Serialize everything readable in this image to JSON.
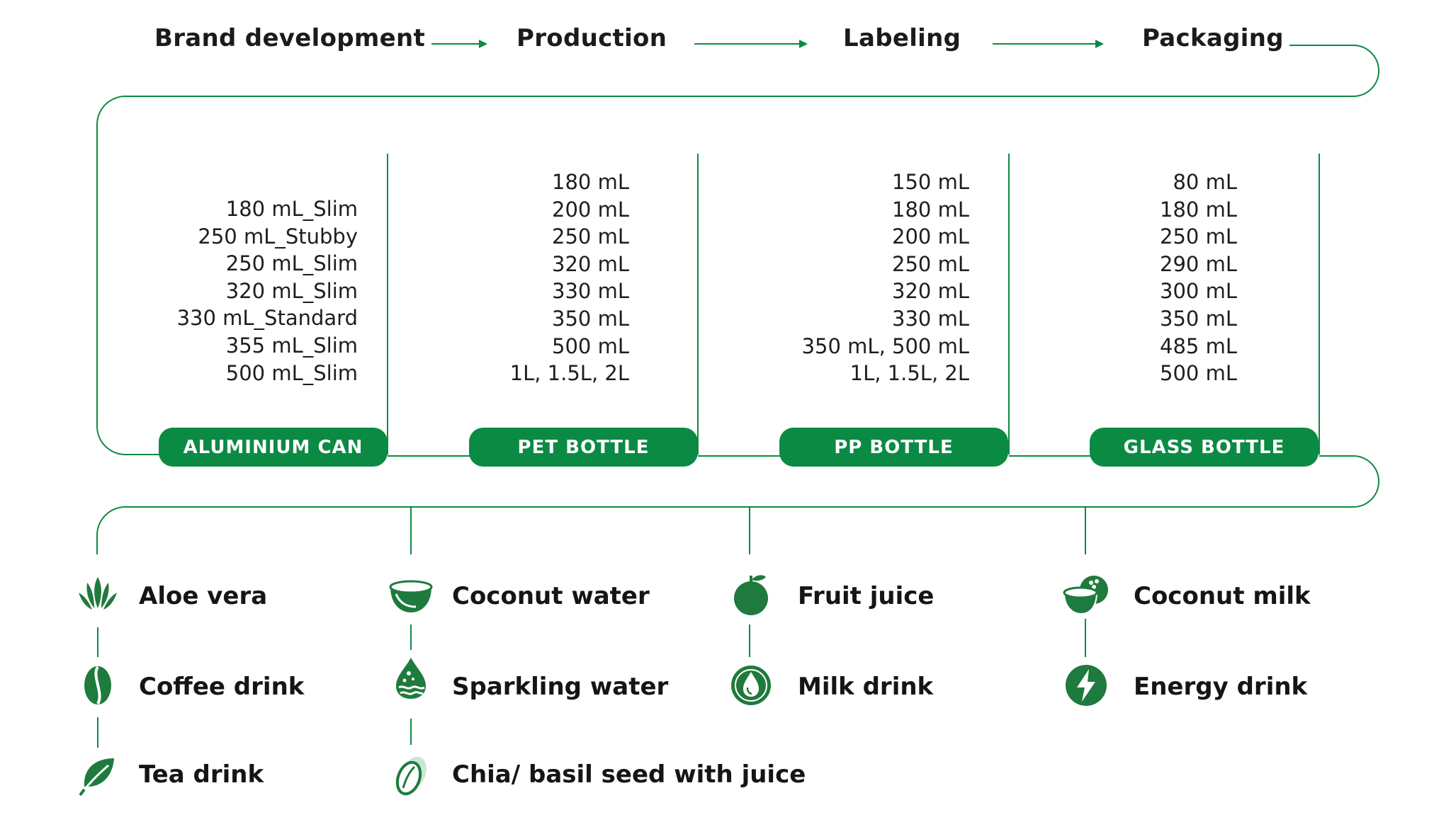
{
  "process_steps": [
    "Brand development",
    "Production",
    "Labeling",
    "Packaging"
  ],
  "containers": [
    {
      "label": "ALUMINIUM CAN",
      "sizes": [
        "180 mL_Slim",
        "250 mL_Stubby",
        "250 mL_Slim",
        "320 mL_Slim",
        "330 mL_Standard",
        "355 mL_Slim",
        "500 mL_Slim"
      ]
    },
    {
      "label": "PET BOTTLE",
      "sizes": [
        "180 mL",
        "200 mL",
        "250 mL",
        "320 mL",
        "330 mL",
        "350 mL",
        "500 mL",
        "1L, 1.5L, 2L"
      ]
    },
    {
      "label": "PP BOTTLE",
      "sizes": [
        "150 mL",
        "180 mL",
        "200 mL",
        "250 mL",
        "320 mL",
        "330 mL",
        "350 mL, 500 mL",
        "1L, 1.5L, 2L"
      ]
    },
    {
      "label": "GLASS BOTTLE",
      "sizes": [
        "80 mL",
        "180 mL",
        "250 mL",
        "290 mL",
        "300 mL",
        "350 mL",
        "485 mL",
        "500 mL"
      ]
    }
  ],
  "flavors": [
    [
      "Aloe vera",
      "Coffee drink",
      "Tea drink"
    ],
    [
      "Coconut water",
      "Sparkling water",
      "Chia/ basil seed with juice"
    ],
    [
      "Fruit juice",
      "Milk drink"
    ],
    [
      "Coconut milk",
      "Energy drink"
    ]
  ],
  "icons": [
    [
      "aloe-vera-icon",
      "coffee-bean-icon",
      "tea-leaf-icon"
    ],
    [
      "coconut-water-icon",
      "sparkling-water-icon",
      "chia-seed-icon"
    ],
    [
      "fruit-icon",
      "milk-drop-icon"
    ],
    [
      "coconut-milk-icon",
      "energy-bolt-icon"
    ]
  ],
  "colors": {
    "accent": "#0b8a44",
    "icon": "#1f7a3d",
    "line": "#0b8a44"
  }
}
